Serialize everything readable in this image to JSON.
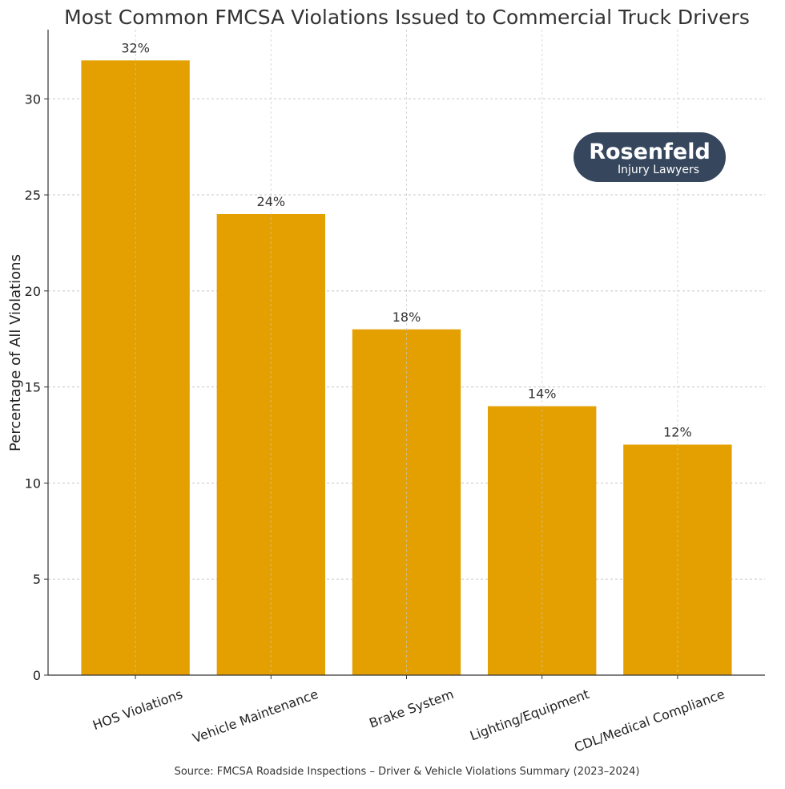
{
  "chart_data": {
    "type": "bar",
    "title": "Most Common FMCSA Violations Issued to Commercial Truck Drivers",
    "xlabel": "",
    "ylabel": "Percentage of All Violations",
    "categories": [
      "HOS Violations",
      "Vehicle Maintenance",
      "Brake System",
      "Lighting/Equipment",
      "CDL/Medical Compliance"
    ],
    "values": [
      32,
      24,
      18,
      14,
      12
    ],
    "data_labels": [
      "32%",
      "24%",
      "18%",
      "14%",
      "12%"
    ],
    "ylim": [
      0,
      33.6
    ],
    "yticks": [
      0,
      5,
      10,
      15,
      20,
      25,
      30
    ],
    "grid": true,
    "bar_color": "#E3A000",
    "source": "Source: FMCSA Roadside Inspections – Driver & Vehicle Violations Summary (2023–2024)"
  },
  "logo": {
    "name": "Rosenfeld",
    "tagline": "Injury Lawyers",
    "color": "#36465D"
  }
}
